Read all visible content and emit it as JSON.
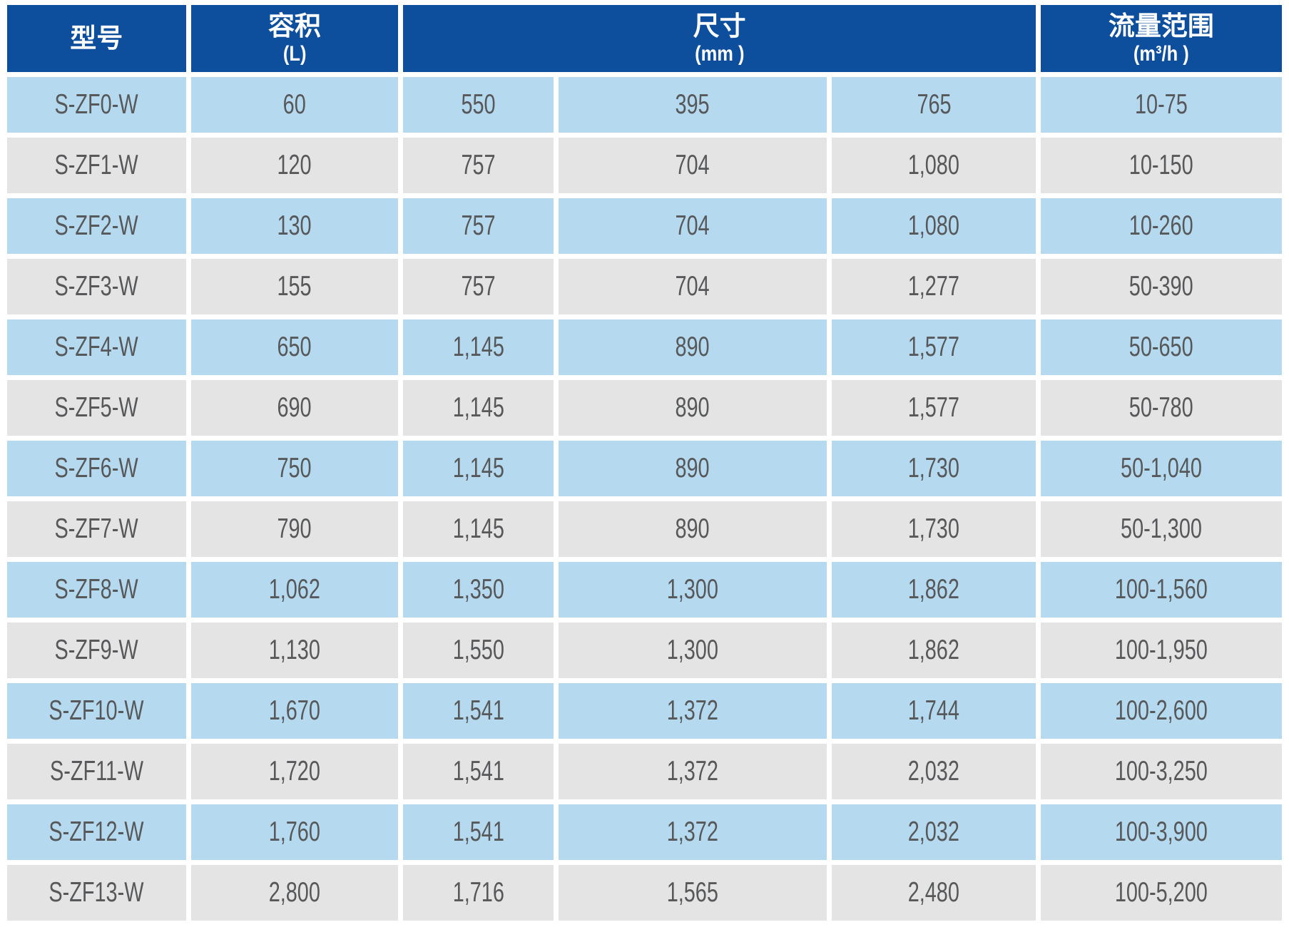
{
  "colors": {
    "header_bg": "#0e4f9d",
    "header_text": "#ffffff",
    "row_blue": "#b5daf0",
    "row_gray": "#e4e4e4",
    "body_text": "#57585a"
  },
  "table": {
    "headers": {
      "model": {
        "label": "型号",
        "unit": ""
      },
      "volume": {
        "label": "容积",
        "unit": "(L)"
      },
      "size": {
        "label": "尺寸",
        "unit": "(mm )"
      },
      "flow": {
        "label": "流量范围",
        "unit": "(m³/h )"
      }
    },
    "column_keys": [
      "model",
      "volume",
      "dim1",
      "dim2",
      "dim3",
      "flow"
    ],
    "rows": [
      {
        "model": "S-ZF0-W",
        "volume": "60",
        "dim1": "550",
        "dim2": "395",
        "dim3": "765",
        "flow": "10-75"
      },
      {
        "model": "S-ZF1-W",
        "volume": "120",
        "dim1": "757",
        "dim2": "704",
        "dim3": "1,080",
        "flow": "10-150"
      },
      {
        "model": "S-ZF2-W",
        "volume": "130",
        "dim1": "757",
        "dim2": "704",
        "dim3": "1,080",
        "flow": "10-260"
      },
      {
        "model": "S-ZF3-W",
        "volume": "155",
        "dim1": "757",
        "dim2": "704",
        "dim3": "1,277",
        "flow": "50-390"
      },
      {
        "model": "S-ZF4-W",
        "volume": "650",
        "dim1": "1,145",
        "dim2": "890",
        "dim3": "1,577",
        "flow": "50-650"
      },
      {
        "model": "S-ZF5-W",
        "volume": "690",
        "dim1": "1,145",
        "dim2": "890",
        "dim3": "1,577",
        "flow": "50-780"
      },
      {
        "model": "S-ZF6-W",
        "volume": "750",
        "dim1": "1,145",
        "dim2": "890",
        "dim3": "1,730",
        "flow": "50-1,040"
      },
      {
        "model": "S-ZF7-W",
        "volume": "790",
        "dim1": "1,145",
        "dim2": "890",
        "dim3": "1,730",
        "flow": "50-1,300"
      },
      {
        "model": "S-ZF8-W",
        "volume": "1,062",
        "dim1": "1,350",
        "dim2": "1,300",
        "dim3": "1,862",
        "flow": "100-1,560"
      },
      {
        "model": "S-ZF9-W",
        "volume": "1,130",
        "dim1": "1,550",
        "dim2": "1,300",
        "dim3": "1,862",
        "flow": "100-1,950"
      },
      {
        "model": "S-ZF10-W",
        "volume": "1,670",
        "dim1": "1,541",
        "dim2": "1,372",
        "dim3": "1,744",
        "flow": "100-2,600"
      },
      {
        "model": "S-ZF11-W",
        "volume": "1,720",
        "dim1": "1,541",
        "dim2": "1,372",
        "dim3": "2,032",
        "flow": "100-3,250"
      },
      {
        "model": "S-ZF12-W",
        "volume": "1,760",
        "dim1": "1,541",
        "dim2": "1,372",
        "dim3": "2,032",
        "flow": "100-3,900"
      },
      {
        "model": "S-ZF13-W",
        "volume": "2,800",
        "dim1": "1,716",
        "dim2": "1,565",
        "dim3": "2,480",
        "flow": "100-5,200"
      }
    ]
  }
}
